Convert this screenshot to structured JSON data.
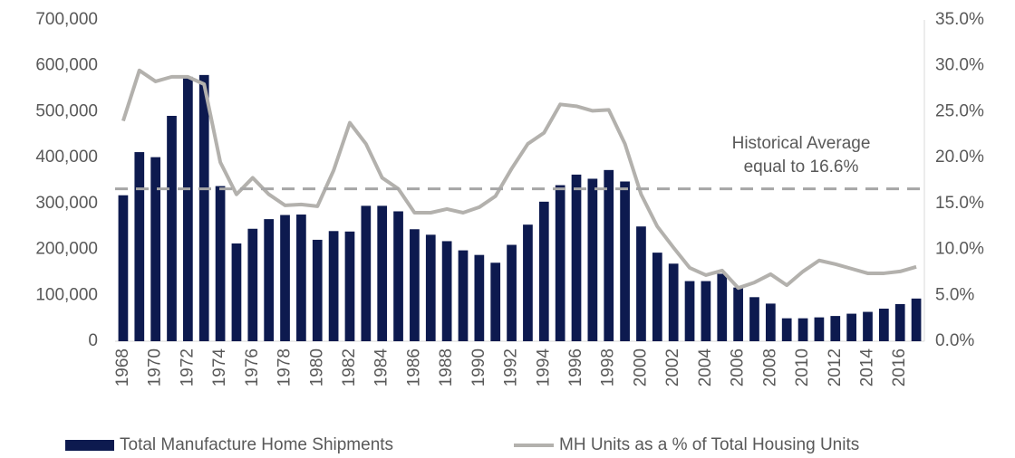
{
  "chart_data": {
    "type": "bar_line",
    "categories": [
      "1968",
      null,
      "1970",
      null,
      "1972",
      null,
      "1974",
      null,
      "1976",
      null,
      "1978",
      null,
      "1980",
      null,
      "1982",
      null,
      "1984",
      null,
      "1986",
      null,
      "1988",
      null,
      "1990",
      null,
      "1992",
      null,
      "1994",
      null,
      "1996",
      null,
      "1998",
      null,
      "2000",
      null,
      "2002",
      null,
      "2004",
      null,
      "2006",
      null,
      "2008",
      null,
      "2010",
      null,
      "2012",
      null,
      "2014",
      null,
      "2016",
      null
    ],
    "series": [
      {
        "name": "Total Manufacture Home Shipments",
        "type": "bar",
        "color": "#0d1a4f",
        "values": [
          318000,
          412000,
          401000,
          491000,
          576000,
          580000,
          338000,
          213000,
          245000,
          266000,
          275000,
          276000,
          221000,
          240000,
          239000,
          295000,
          295000,
          283000,
          244000,
          232000,
          218000,
          198000,
          188000,
          171000,
          210000,
          254000,
          304000,
          340000,
          363000,
          354000,
          373000,
          348000,
          250000,
          193000,
          169000,
          131000,
          131000,
          147000,
          117000,
          96000,
          82000,
          50000,
          50000,
          52000,
          55000,
          60000,
          64000,
          71000,
          81000,
          93000
        ]
      },
      {
        "name": "MH Units as a % of Total Housing Units",
        "type": "line",
        "axis": "y2",
        "color": "#b3b1ad",
        "values": [
          24.0,
          29.5,
          28.3,
          28.8,
          28.8,
          28.0,
          19.5,
          16.0,
          17.8,
          16.0,
          14.8,
          14.9,
          14.7,
          18.6,
          23.8,
          21.5,
          17.8,
          16.6,
          14.0,
          14.0,
          14.4,
          14.0,
          14.6,
          15.8,
          18.8,
          21.5,
          22.7,
          25.8,
          25.6,
          25.1,
          25.2,
          21.5,
          16.0,
          12.5,
          10.2,
          8.0,
          7.2,
          7.7,
          5.8,
          6.4,
          7.3,
          6.1,
          7.6,
          8.8,
          8.4,
          7.9,
          7.4,
          7.4,
          7.6,
          8.1
        ]
      }
    ],
    "ylim": [
      0,
      700000
    ],
    "yticks": [
      0,
      {
        "value": 100000,
        "label": "100,000"
      },
      {
        "value": 200000,
        "label": "200,000"
      },
      {
        "value": 300000,
        "label": "300,000"
      },
      {
        "value": 400000,
        "label": "400,000"
      },
      {
        "value": 500000,
        "label": "500,000"
      },
      {
        "value": 600000,
        "label": "600,000"
      },
      {
        "value": 700000,
        "label": "700,000"
      }
    ],
    "y2lim": [
      0,
      35
    ],
    "y2ticks": [
      {
        "value": 0,
        "label": "0.0%"
      },
      {
        "value": 5,
        "label": "5.0%"
      },
      {
        "value": 10,
        "label": "10.0%"
      },
      {
        "value": 15,
        "label": "15.0%"
      },
      {
        "value": 20,
        "label": "20.0%"
      },
      {
        "value": 25,
        "label": "25.0%"
      },
      {
        "value": 30,
        "label": "30.0%"
      },
      {
        "value": 35,
        "label": "35.0%"
      }
    ],
    "reference_line": {
      "value": 16.6,
      "axis": "y2",
      "color": "#a6a6a6"
    },
    "annotation": [
      "Historical Average",
      "equal to 16.6%"
    ],
    "legend": "bottom"
  }
}
